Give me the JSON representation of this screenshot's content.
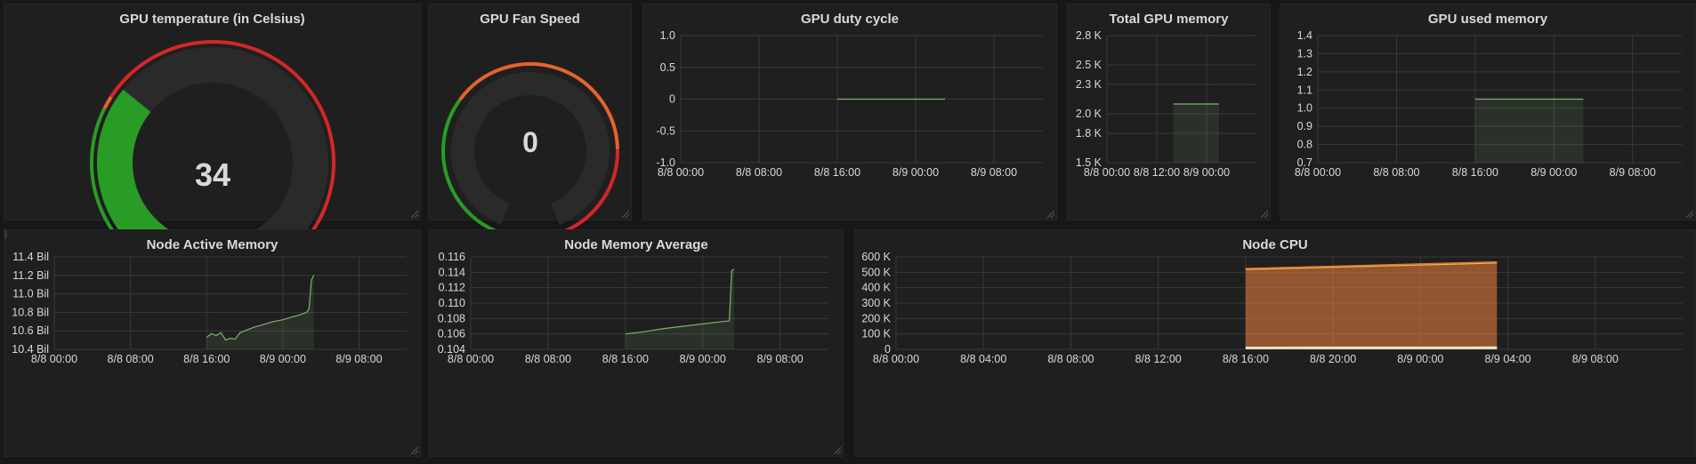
{
  "dashboard": {
    "panels": {
      "gpu_temp": {
        "title": "GPU temperature (in Celsius)"
      },
      "gpu_fan": {
        "title": "GPU Fan Speed"
      },
      "gpu_duty": {
        "title": "GPU duty cycle"
      },
      "gpu_total_mem": {
        "title": "Total GPU memory"
      },
      "gpu_used_mem": {
        "title": "GPU used memory"
      },
      "node_active_mem": {
        "title": "Node Active Memory"
      },
      "node_mem_avg": {
        "title": "Node Memory Average"
      },
      "node_cpu": {
        "title": "Node CPU"
      }
    }
  },
  "chart_data": [
    {
      "id": "gpu_temp",
      "type": "gauge",
      "title": "GPU temperature (in Celsius)",
      "value": 34,
      "value_label": "34",
      "min": 0,
      "max": 100,
      "thresholds": [
        30,
        32
      ],
      "colors": {
        "ok": "#299c26",
        "warn": "#e5642b",
        "crit": "#d42727",
        "track": "#2a2a2b"
      }
    },
    {
      "id": "gpu_fan",
      "type": "gauge",
      "title": "GPU Fan Speed",
      "value": 0,
      "value_label": "0",
      "min": 0,
      "max": 100,
      "thresholds": [
        33,
        78
      ],
      "colors": {
        "ok": "#299c26",
        "warn": "#e5642b",
        "crit": "#d42727",
        "track": "#2a2a2b"
      }
    },
    {
      "id": "gpu_duty",
      "type": "line",
      "title": "GPU duty cycle",
      "x_ticks": [
        "8/8 00:00",
        "8/8 08:00",
        "8/8 16:00",
        "8/9 00:00",
        "8/9 08:00"
      ],
      "y_ticks": [
        "1.0",
        "0.5",
        "0",
        "-0.5",
        "-1.0"
      ],
      "xlim": [
        "8/8 00:00",
        "8/9 13:00"
      ],
      "ylim": [
        -1.0,
        1.0
      ],
      "grid": true,
      "series": [
        {
          "color": "#7eb26d",
          "fill": false,
          "points": [
            [
              "8/8 16:00",
              0
            ],
            [
              "8/9 03:00",
              0
            ]
          ]
        }
      ]
    },
    {
      "id": "gpu_total_mem",
      "type": "area",
      "title": "Total GPU memory",
      "x_ticks": [
        "8/8 00:00",
        "8/8 12:00",
        "8/9 00:00"
      ],
      "y_ticks": [
        "2.8 K",
        "2.5 K",
        "2.3 K",
        "2.0 K",
        "1.8 K",
        "1.5 K"
      ],
      "xlim": [
        "8/8 00:00",
        "8/9 12:00"
      ],
      "ylim": [
        1500,
        2800
      ],
      "grid": true,
      "series": [
        {
          "color": "#7eb26d",
          "fill": true,
          "points": [
            [
              "8/8 16:00",
              2100
            ],
            [
              "8/9 03:00",
              2100
            ]
          ]
        }
      ]
    },
    {
      "id": "gpu_used_mem",
      "type": "area",
      "title": "GPU used memory",
      "x_ticks": [
        "8/8 00:00",
        "8/8 08:00",
        "8/8 16:00",
        "8/9 00:00",
        "8/9 08:00"
      ],
      "y_ticks": [
        "1.4",
        "1.3",
        "1.2",
        "1.1",
        "1.0",
        "0.9",
        "0.8",
        "0.7"
      ],
      "xlim": [
        "8/8 00:00",
        "8/9 13:00"
      ],
      "ylim": [
        0.7,
        1.4
      ],
      "grid": true,
      "series": [
        {
          "color": "#7eb26d",
          "fill": true,
          "points": [
            [
              "8/8 16:00",
              1.05
            ],
            [
              "8/9 03:00",
              1.05
            ]
          ]
        }
      ]
    },
    {
      "id": "node_active_mem",
      "type": "area",
      "title": "Node Active Memory",
      "x_ticks": [
        "8/8 00:00",
        "8/8 08:00",
        "8/8 16:00",
        "8/9 00:00",
        "8/9 08:00"
      ],
      "y_ticks": [
        "11.4 Bil",
        "11.2 Bil",
        "11.0 Bil",
        "10.8 Bil",
        "10.6 Bil",
        "10.4 Bil"
      ],
      "xlim": [
        "8/8 00:00",
        "8/9 13:00"
      ],
      "ylim": [
        10.4,
        11.4
      ],
      "y_unit": "Bil",
      "grid": true,
      "series": [
        {
          "color": "#7eb26d",
          "fill": true,
          "points": [
            [
              "8/8 16:00",
              10.53
            ],
            [
              "8/8 16:30",
              10.57
            ],
            [
              "8/8 17:00",
              10.55
            ],
            [
              "8/8 17:30",
              10.58
            ],
            [
              "8/8 18:00",
              10.5
            ],
            [
              "8/8 18:30",
              10.52
            ],
            [
              "8/8 19:00",
              10.51
            ],
            [
              "8/8 19:30",
              10.58
            ],
            [
              "8/8 20:00",
              10.6
            ],
            [
              "8/8 20:30",
              10.62
            ],
            [
              "8/8 21:00",
              10.64
            ],
            [
              "8/8 22:00",
              10.67
            ],
            [
              "8/8 23:00",
              10.7
            ],
            [
              "8/9 00:00",
              10.72
            ],
            [
              "8/9 01:00",
              10.75
            ],
            [
              "8/9 02:00",
              10.78
            ],
            [
              "8/9 02:30",
              10.8
            ],
            [
              "8/9 02:45",
              10.84
            ],
            [
              "8/9 03:00",
              11.15
            ],
            [
              "8/9 03:15",
              11.2
            ]
          ]
        }
      ]
    },
    {
      "id": "node_mem_avg",
      "type": "area",
      "title": "Node Memory Average",
      "x_ticks": [
        "8/8 00:00",
        "8/8 08:00",
        "8/8 16:00",
        "8/9 00:00",
        "8/9 08:00"
      ],
      "y_ticks": [
        "0.116",
        "0.114",
        "0.112",
        "0.110",
        "0.108",
        "0.106",
        "0.104"
      ],
      "xlim": [
        "8/8 00:00",
        "8/9 13:00"
      ],
      "ylim": [
        0.104,
        0.116
      ],
      "grid": true,
      "series": [
        {
          "color": "#7eb26d",
          "fill": true,
          "points": [
            [
              "8/8 16:00",
              0.106
            ],
            [
              "8/8 18:00",
              0.1063
            ],
            [
              "8/8 20:00",
              0.1067
            ],
            [
              "8/8 22:00",
              0.107
            ],
            [
              "8/9 00:00",
              0.1073
            ],
            [
              "8/9 02:00",
              0.1076
            ],
            [
              "8/9 02:45",
              0.1077
            ],
            [
              "8/9 03:00",
              0.1142
            ],
            [
              "8/9 03:15",
              0.1144
            ]
          ]
        }
      ]
    },
    {
      "id": "node_cpu",
      "type": "area",
      "title": "Node CPU",
      "x_ticks": [
        "8/8 00:00",
        "8/8 04:00",
        "8/8 08:00",
        "8/8 12:00",
        "8/8 16:00",
        "8/8 20:00",
        "8/9 00:00",
        "8/9 04:00",
        "8/9 08:00"
      ],
      "y_ticks": [
        "600 K",
        "500 K",
        "400 K",
        "300 K",
        "200 K",
        "100 K",
        "0"
      ],
      "xlim": [
        "8/8 00:00",
        "8/9 12:00"
      ],
      "ylim": [
        0,
        600000
      ],
      "grid": true,
      "series": [
        {
          "color": "#ef843c",
          "fill": true,
          "points": [
            [
              "8/8 16:00",
              525000
            ],
            [
              "8/9 03:30",
              568000
            ]
          ]
        },
        {
          "color": "#e24d42",
          "fill": false,
          "points": [
            [
              "8/8 16:00",
              522000
            ],
            [
              "8/9 03:30",
              563000
            ]
          ]
        },
        {
          "color": "#eab839",
          "fill": false,
          "points": [
            [
              "8/8 16:00",
              518000
            ],
            [
              "8/9 03:30",
              560000
            ]
          ]
        },
        {
          "color": "#f2e9c8",
          "fill": true,
          "points": [
            [
              "8/8 16:00",
              14000
            ],
            [
              "8/9 03:30",
              15000
            ]
          ]
        }
      ]
    }
  ]
}
